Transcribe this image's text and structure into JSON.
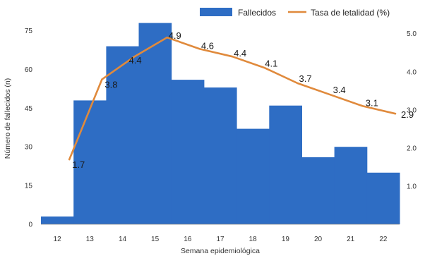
{
  "chart_data": {
    "type": "bar",
    "title": "",
    "xlabel": "Semana epidemiológica",
    "ylabel": "Número de fallecidos (n)",
    "categories": [
      "12",
      "13",
      "14",
      "15",
      "16",
      "17",
      "18",
      "19",
      "20",
      "21",
      "22"
    ],
    "y_ticks": [
      "0",
      "15",
      "30",
      "45",
      "60",
      "75"
    ],
    "y2_ticks": [
      "1.0",
      "2.0",
      "3.0",
      "4.0",
      "5.0"
    ],
    "ylim": [
      0,
      82
    ],
    "y2lim": [
      0,
      5.55
    ],
    "grid": false,
    "legend_position": "top-right",
    "series": [
      {
        "name": "Fallecidos",
        "type": "bar",
        "axis": "left",
        "color": "#2e6dc4",
        "values": [
          3,
          48,
          69,
          78,
          56,
          53,
          37,
          46,
          26,
          30,
          20
        ]
      },
      {
        "name": "Tasa de letalidad (%)",
        "type": "line",
        "axis": "right",
        "color": "#e08a3c",
        "values": [
          1.7,
          3.8,
          4.4,
          4.9,
          4.6,
          4.4,
          4.1,
          3.7,
          3.4,
          3.1,
          2.9
        ],
        "labels": [
          "1.7",
          "3.8",
          "4.4",
          "4.9",
          "4.6",
          "4.4",
          "4.1",
          "3.7",
          "3.4",
          "3.1",
          "2.9"
        ]
      }
    ]
  }
}
